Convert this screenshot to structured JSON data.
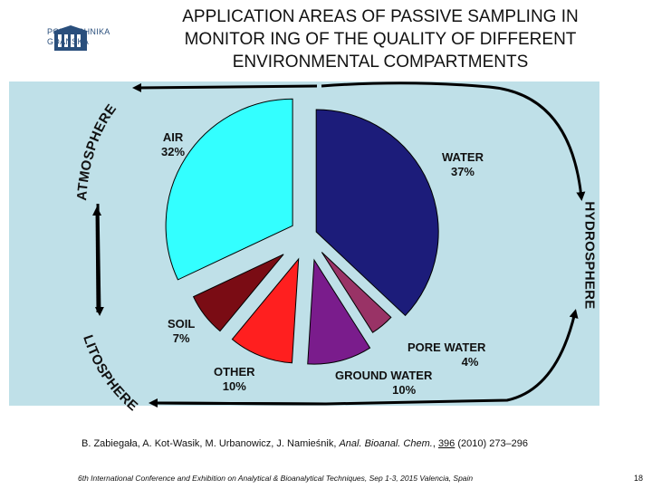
{
  "logo": {
    "line1": "POLITECHNIKA",
    "line2": "GDAŃSKA"
  },
  "title": {
    "line1": "APPLICATION AREAS OF PASSIVE SAMPLING IN",
    "line2": "MONITOR ING OF THE QUALITY OF DIFFERENT",
    "line3": "ENVIRONMENTAL COMPARTMENTS"
  },
  "spheres": {
    "atmosphere": "ATMOSPHERE",
    "hydrosphere": "HYDROSPHERE",
    "litosphere": "LITOSPHERE"
  },
  "chart_data": {
    "type": "pie",
    "title": "",
    "slices": [
      {
        "name": "WATER",
        "value": 37,
        "label": "37%",
        "color": "#1c1c7a"
      },
      {
        "name": "PORE WATER",
        "value": 4,
        "label": "4%",
        "color": "#993366"
      },
      {
        "name": "GROUND WATER",
        "value": 10,
        "label": "10%",
        "color": "#7a1c8c"
      },
      {
        "name": "OTHER",
        "value": 10,
        "label": "10%",
        "color": "#ff1f1f"
      },
      {
        "name": "SOIL",
        "value": 7,
        "label": "7%",
        "color": "#7a0c14"
      },
      {
        "name": "AIR",
        "value": 32,
        "label": "32%",
        "color": "#33ffff"
      }
    ]
  },
  "citation": {
    "authors": "B. Zabiegała, A. Kot-Wasik, M. Urbanowicz, J. Namieśnik, ",
    "journal": "Anal. Bioanal. Chem.",
    "sep": ", ",
    "volume": "396",
    "pages": " (2010) 273–296"
  },
  "footer": "6th International Conference and Exhibition on Analytical & Bioanalytical Techniques, Sep 1-3, 2015 Valencia, Spain",
  "page_number": "18"
}
